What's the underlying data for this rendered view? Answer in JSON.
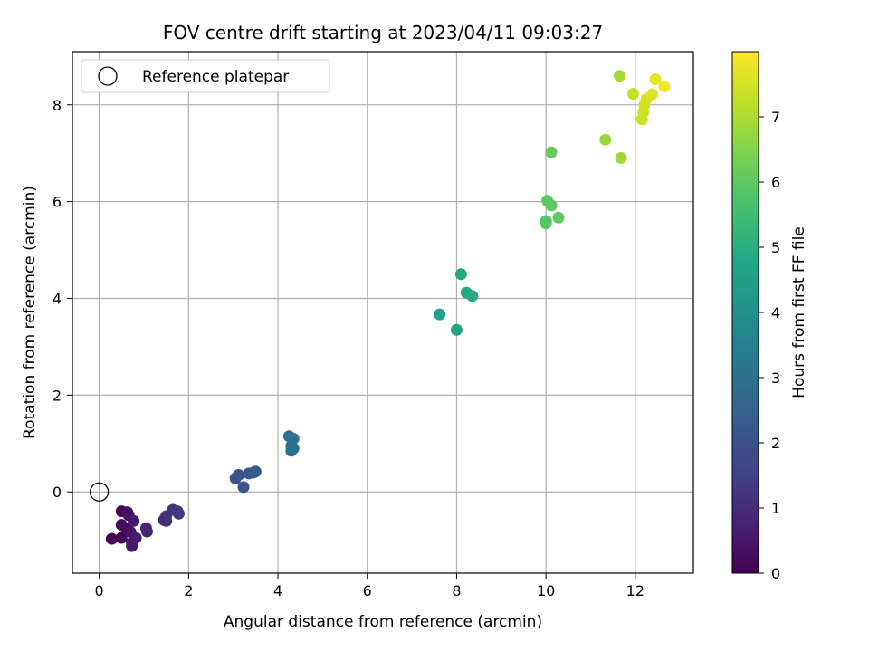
{
  "chart_data": {
    "type": "scatter",
    "title": "FOV centre drift starting at 2023/04/11 09:03:27",
    "xlabel": "Angular distance from reference (arcmin)",
    "ylabel": "Rotation from reference (arcmin)",
    "xlim": [
      -0.6,
      13.3
    ],
    "ylim": [
      -1.68,
      9.1
    ],
    "xticks": [
      0,
      2,
      4,
      6,
      8,
      10,
      12
    ],
    "yticks": [
      0,
      2,
      4,
      6,
      8
    ],
    "grid": true,
    "legend": {
      "position": "top-left",
      "entries": [
        "Reference platepar"
      ]
    },
    "reference_point": {
      "x": 0,
      "y": 0,
      "label": "Reference platepar"
    },
    "colorbar": {
      "label": "Hours from first FF file",
      "colormap": "viridis",
      "range": [
        0,
        8
      ],
      "ticks": [
        0,
        1,
        2,
        3,
        4,
        5,
        6,
        7
      ]
    },
    "points": [
      {
        "x": 0.28,
        "y": -0.97,
        "c": 0.05
      },
      {
        "x": 0.5,
        "y": -0.95,
        "c": 0.1
      },
      {
        "x": 0.5,
        "y": -0.4,
        "c": 0.15
      },
      {
        "x": 0.5,
        "y": -0.68,
        "c": 0.2
      },
      {
        "x": 0.6,
        "y": -0.75,
        "c": 0.25
      },
      {
        "x": 0.63,
        "y": -0.42,
        "c": 0.3
      },
      {
        "x": 0.66,
        "y": -0.48,
        "c": 0.35
      },
      {
        "x": 0.7,
        "y": -0.83,
        "c": 0.4
      },
      {
        "x": 0.73,
        "y": -1.12,
        "c": 0.45
      },
      {
        "x": 0.73,
        "y": -1.05,
        "c": 0.5
      },
      {
        "x": 0.77,
        "y": -0.6,
        "c": 0.55
      },
      {
        "x": 0.82,
        "y": -0.95,
        "c": 0.6
      },
      {
        "x": 1.05,
        "y": -0.75,
        "c": 0.75
      },
      {
        "x": 1.07,
        "y": -0.82,
        "c": 0.8
      },
      {
        "x": 1.45,
        "y": -0.58,
        "c": 1.0
      },
      {
        "x": 1.5,
        "y": -0.5,
        "c": 1.05
      },
      {
        "x": 1.5,
        "y": -0.6,
        "c": 1.1
      },
      {
        "x": 1.65,
        "y": -0.37,
        "c": 1.15
      },
      {
        "x": 1.75,
        "y": -0.4,
        "c": 1.2
      },
      {
        "x": 1.78,
        "y": -0.45,
        "c": 1.25
      },
      {
        "x": 3.05,
        "y": 0.28,
        "c": 1.95
      },
      {
        "x": 3.12,
        "y": 0.35,
        "c": 2.0
      },
      {
        "x": 3.23,
        "y": 0.1,
        "c": 2.1
      },
      {
        "x": 3.35,
        "y": 0.38,
        "c": 2.2
      },
      {
        "x": 3.45,
        "y": 0.4,
        "c": 2.25
      },
      {
        "x": 3.5,
        "y": 0.42,
        "c": 2.3
      },
      {
        "x": 4.25,
        "y": 1.15,
        "c": 2.85
      },
      {
        "x": 4.3,
        "y": 0.95,
        "c": 2.9
      },
      {
        "x": 4.3,
        "y": 0.85,
        "c": 2.95
      },
      {
        "x": 4.35,
        "y": 1.1,
        "c": 3.0
      },
      {
        "x": 4.35,
        "y": 0.9,
        "c": 3.05
      },
      {
        "x": 7.62,
        "y": 3.67,
        "c": 4.6
      },
      {
        "x": 8.0,
        "y": 3.35,
        "c": 4.7
      },
      {
        "x": 8.1,
        "y": 4.5,
        "c": 4.8
      },
      {
        "x": 8.22,
        "y": 4.12,
        "c": 4.85
      },
      {
        "x": 8.35,
        "y": 4.05,
        "c": 4.9
      },
      {
        "x": 10.0,
        "y": 5.55,
        "c": 5.85
      },
      {
        "x": 10.0,
        "y": 5.6,
        "c": 5.9
      },
      {
        "x": 10.03,
        "y": 6.02,
        "c": 5.95
      },
      {
        "x": 10.12,
        "y": 5.92,
        "c": 6.0
      },
      {
        "x": 10.12,
        "y": 7.02,
        "c": 6.1
      },
      {
        "x": 10.28,
        "y": 5.67,
        "c": 6.05
      },
      {
        "x": 11.33,
        "y": 7.28,
        "c": 6.8
      },
      {
        "x": 11.65,
        "y": 8.6,
        "c": 6.9
      },
      {
        "x": 11.68,
        "y": 6.9,
        "c": 6.85
      },
      {
        "x": 11.95,
        "y": 8.23,
        "c": 7.3
      },
      {
        "x": 12.15,
        "y": 7.7,
        "c": 7.35
      },
      {
        "x": 12.18,
        "y": 7.85,
        "c": 7.4
      },
      {
        "x": 12.2,
        "y": 8.0,
        "c": 7.45
      },
      {
        "x": 12.25,
        "y": 8.12,
        "c": 7.5
      },
      {
        "x": 12.38,
        "y": 8.22,
        "c": 7.6
      },
      {
        "x": 12.45,
        "y": 8.53,
        "c": 7.7
      },
      {
        "x": 12.65,
        "y": 8.38,
        "c": 7.8
      }
    ]
  }
}
